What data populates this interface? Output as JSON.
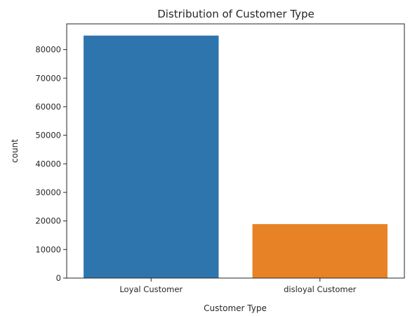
{
  "chart_data": {
    "type": "bar",
    "title": "Distribution of Customer Type",
    "xlabel": "Customer Type",
    "ylabel": "count",
    "categories": [
      "Loyal Customer",
      "disloyal Customer"
    ],
    "values": [
      84900,
      18900
    ],
    "colors": [
      "#2f75ad",
      "#e88226"
    ],
    "ylim": [
      0,
      89000
    ],
    "yticks": [
      0,
      10000,
      20000,
      30000,
      40000,
      50000,
      60000,
      70000,
      80000
    ],
    "grid": false,
    "legend": "none"
  }
}
